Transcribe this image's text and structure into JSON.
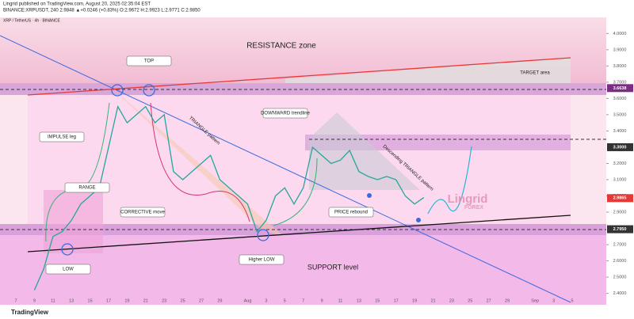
{
  "header": {
    "publisher": "Lingrid published on TradingView.com, August 20, 2025 02:35:04 EST",
    "symbol_line": "BINANCE:XRPUSDT, 240  2.9848 ▲+0.0246 (+0.83%) O:2.9672 H:2.9923 L:2.9771 C:2.9850",
    "chart_name": "XRP / TetherUS · 4h · BINANCE"
  },
  "footer": {
    "brand": "TradingView"
  },
  "chart_data": {
    "type": "line",
    "series": [
      {
        "name": "XRPUSDT",
        "color": "#26a69a",
        "values": [
          null,
          null,
          2.42,
          2.55,
          2.75,
          2.78,
          2.85,
          2.95,
          3.0,
          3.05,
          3.3,
          3.55,
          3.45,
          3.5,
          3.55,
          3.45,
          3.5,
          3.15,
          3.1,
          3.15,
          3.2,
          3.25,
          3.1,
          3.05,
          3.0,
          2.95,
          2.78,
          2.85,
          3.0,
          3.05,
          2.95,
          3.05,
          3.3,
          3.25,
          3.2,
          3.22,
          3.28,
          3.15,
          3.12,
          3.1,
          3.12,
          3.1,
          3.0,
          2.95,
          2.99,
          null,
          null,
          null,
          null,
          null,
          null,
          null,
          null,
          null,
          null,
          null,
          null,
          null,
          null,
          null,
          null
        ]
      }
    ],
    "categories": [
      "7",
      null,
      "9",
      null,
      "11",
      null,
      "13",
      null,
      "15",
      null,
      "17",
      null,
      "19",
      null,
      "21",
      null,
      "23",
      null,
      "25",
      null,
      "27",
      null,
      "29",
      null,
      null,
      "Aug",
      null,
      "3",
      null,
      "5",
      null,
      "7",
      null,
      "9",
      null,
      "11",
      null,
      "13",
      null,
      "15",
      null,
      "17",
      null,
      "19",
      null,
      "21",
      null,
      "23",
      null,
      "25",
      null,
      "27",
      null,
      "29",
      null,
      null,
      "Sep",
      null,
      "3",
      null,
      "5"
    ],
    "ylim": [
      2.33,
      4.06
    ],
    "yticks": [
      {
        "value": 4.0,
        "label": "4.0000"
      },
      {
        "value": 3.9,
        "label": "3.9000"
      },
      {
        "value": 3.8,
        "label": "3.8000"
      },
      {
        "value": 3.7,
        "label": "3.7000"
      },
      {
        "value": 3.6,
        "label": "3.6000"
      },
      {
        "value": 3.5,
        "label": "3.5000"
      },
      {
        "value": 3.4,
        "label": "3.4000"
      },
      {
        "value": 3.2,
        "label": "3.2000"
      },
      {
        "value": 3.1,
        "label": "3.1000"
      },
      {
        "value": 3.0,
        "label": "3.0000"
      },
      {
        "value": 2.9,
        "label": "2.9000"
      },
      {
        "value": 2.7,
        "label": "2.7000"
      },
      {
        "value": 2.6,
        "label": "2.6000"
      },
      {
        "value": 2.5,
        "label": "2.5000"
      },
      {
        "value": 2.4,
        "label": "2.4000"
      }
    ],
    "price_labels": [
      {
        "value": 3.6638,
        "label": "3.6638",
        "color": "#7b2d83"
      },
      {
        "value": 3.3,
        "label": "3.3000",
        "color": "#333333"
      },
      {
        "value": 2.9865,
        "label": "2.9865",
        "color": "#e53935"
      },
      {
        "value": 2.795,
        "label": "2.7950",
        "color": "#333333"
      }
    ],
    "annotations": [
      "RESISTANCE zone",
      "TARGET area",
      "TOP",
      "DOWNWARD trendline",
      "IMPULSE leg",
      "TRIANGLE pattern",
      "RANGE",
      "CORRECTIVE move",
      "PRICE rebound",
      "Descending TRIANGLE pattern",
      "Higher LOW",
      "LOW",
      "SUPPORT level",
      "Lingrid",
      "FOREX"
    ]
  }
}
